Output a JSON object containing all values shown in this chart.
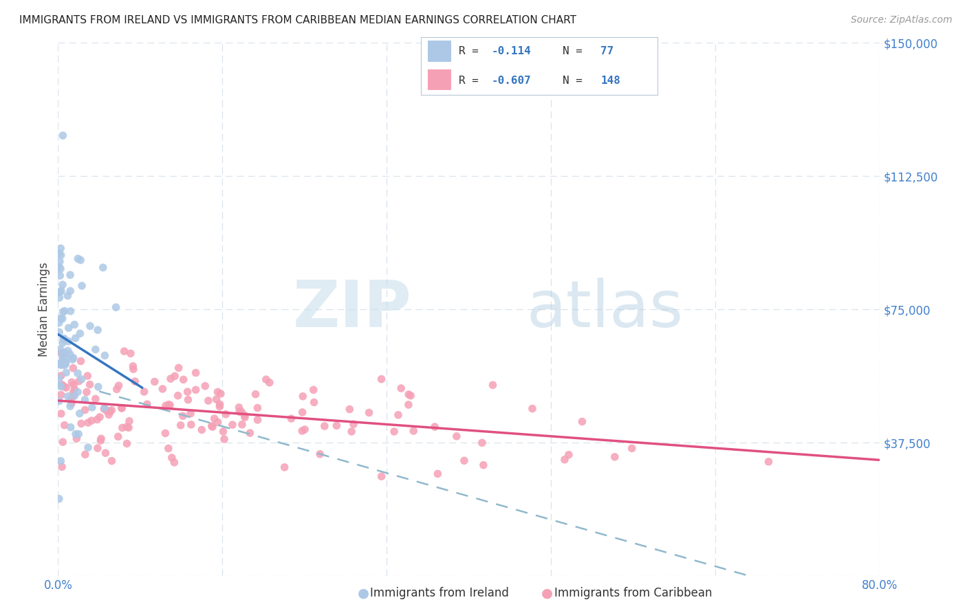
{
  "title": "IMMIGRANTS FROM IRELAND VS IMMIGRANTS FROM CARIBBEAN MEDIAN EARNINGS CORRELATION CHART",
  "source": "Source: ZipAtlas.com",
  "ylabel": "Median Earnings",
  "xlim": [
    0,
    0.8
  ],
  "ylim": [
    0,
    150000
  ],
  "ireland_R": -0.114,
  "ireland_N": 77,
  "caribbean_R": -0.607,
  "caribbean_N": 148,
  "ireland_color": "#adc8e6",
  "ireland_line_color": "#3575c0",
  "caribbean_color": "#f5a0b5",
  "caribbean_line_color": "#e05080",
  "dashed_line_color": "#90b8cc",
  "background_color": "#ffffff",
  "grid_color": "#d0dce8",
  "tick_color": "#4080cc",
  "title_color": "#222222",
  "source_color": "#999999",
  "ylabel_color": "#444444"
}
